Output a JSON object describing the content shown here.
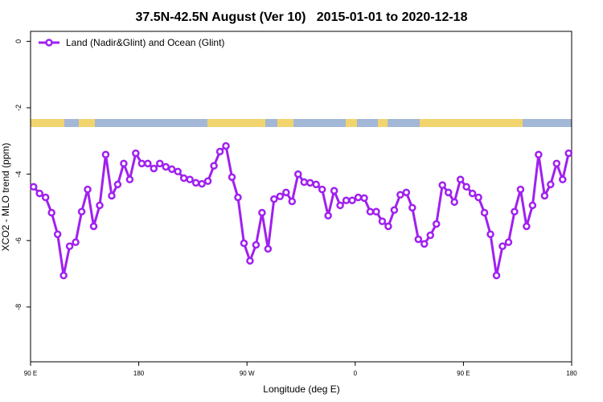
{
  "chart_data": {
    "type": "line",
    "title": "37.5N-42.5N August (Ver 10)   2015-01-01 to 2020-12-18",
    "x_label": "Longitude (deg E)",
    "y_label": "XCO2 - MLO trend (ppm)",
    "xlim": [
      90,
      540
    ],
    "ylim": [
      -9.65,
      0.3
    ],
    "xticks": [
      {
        "value": 90,
        "label": "90 E"
      },
      180,
      {
        "value": 270,
        "label": "90 W"
      },
      {
        "value": 360,
        "label": "0"
      },
      {
        "value": 450,
        "label": "90 E"
      },
      {
        "value": 540,
        "label": "180"
      }
    ],
    "yticks": [
      0,
      -2,
      -4,
      -6,
      -8
    ],
    "legend": "top-left",
    "x": [
      92.5,
      97.5,
      102.5,
      107.5,
      112.5,
      117.5,
      122.5,
      127.5,
      132.5,
      137.5,
      142.5,
      147.5,
      152.5,
      157.5,
      162.5,
      167.5,
      172.5,
      177.5,
      182.5,
      187.5,
      192.5,
      197.5,
      202.5,
      207.5,
      212.5,
      217.5,
      222.5,
      227.5,
      232.5,
      237.5,
      242.5,
      247.5,
      252.5,
      257.5,
      262.5,
      267.5,
      272.5,
      277.5,
      282.5,
      287.5,
      292.5,
      297.5,
      302.5,
      307.5,
      312.5,
      317.5,
      322.5,
      327.5,
      332.5,
      337.5,
      342.5,
      347.5,
      352.5,
      357.5,
      362.5,
      367.5,
      372.5,
      377.5,
      382.5,
      387.5,
      392.5,
      397.5,
      402.5,
      407.5,
      412.5,
      417.5,
      422.5,
      427.5,
      432.5,
      437.5,
      442.5,
      447.5,
      452.5,
      457.5,
      462.5,
      467.5,
      472.5,
      477.5,
      482.5,
      487.5,
      492.5,
      497.5,
      502.5,
      507.5,
      512.5,
      517.5,
      522.5,
      527.5,
      532.5,
      537.5
    ],
    "series": [
      {
        "name": "Land (Nadir&Glint) and Ocean (Glint)",
        "color": "#a020f0",
        "values": [
          -4.38,
          -4.58,
          -4.7,
          -5.16,
          -5.81,
          -7.05,
          -6.17,
          -6.05,
          -5.13,
          -4.46,
          -5.57,
          -4.94,
          -3.41,
          -4.65,
          -4.31,
          -3.68,
          -4.16,
          -3.37,
          -3.68,
          -3.68,
          -3.83,
          -3.68,
          -3.78,
          -3.85,
          -3.92,
          -4.12,
          -4.16,
          -4.26,
          -4.29,
          -4.21,
          -3.75,
          -3.32,
          -3.15,
          -4.09,
          -4.7,
          -6.08,
          -6.61,
          -6.13,
          -5.16,
          -6.25,
          -4.75,
          -4.67,
          -4.55,
          -4.82,
          -4.0,
          -4.24,
          -4.26,
          -4.31,
          -4.46,
          -5.25,
          -4.5,
          -4.94,
          -4.79,
          -4.79,
          -4.7,
          -4.72,
          -5.13,
          -5.13,
          -5.42,
          -5.57,
          -5.08,
          -4.62,
          -4.55,
          -5.01,
          -5.96,
          -6.1,
          -5.84,
          -5.5,
          -4.33,
          -4.55,
          -4.84,
          -4.16,
          -4.38,
          -4.58,
          -4.7,
          -5.16,
          -5.81,
          -7.05,
          -6.17,
          -6.05,
          -5.13,
          -4.46,
          -5.57,
          -4.94,
          -3.41,
          -4.65,
          -4.31,
          -3.68,
          -4.16,
          -3.37
        ]
      }
    ]
  }
}
